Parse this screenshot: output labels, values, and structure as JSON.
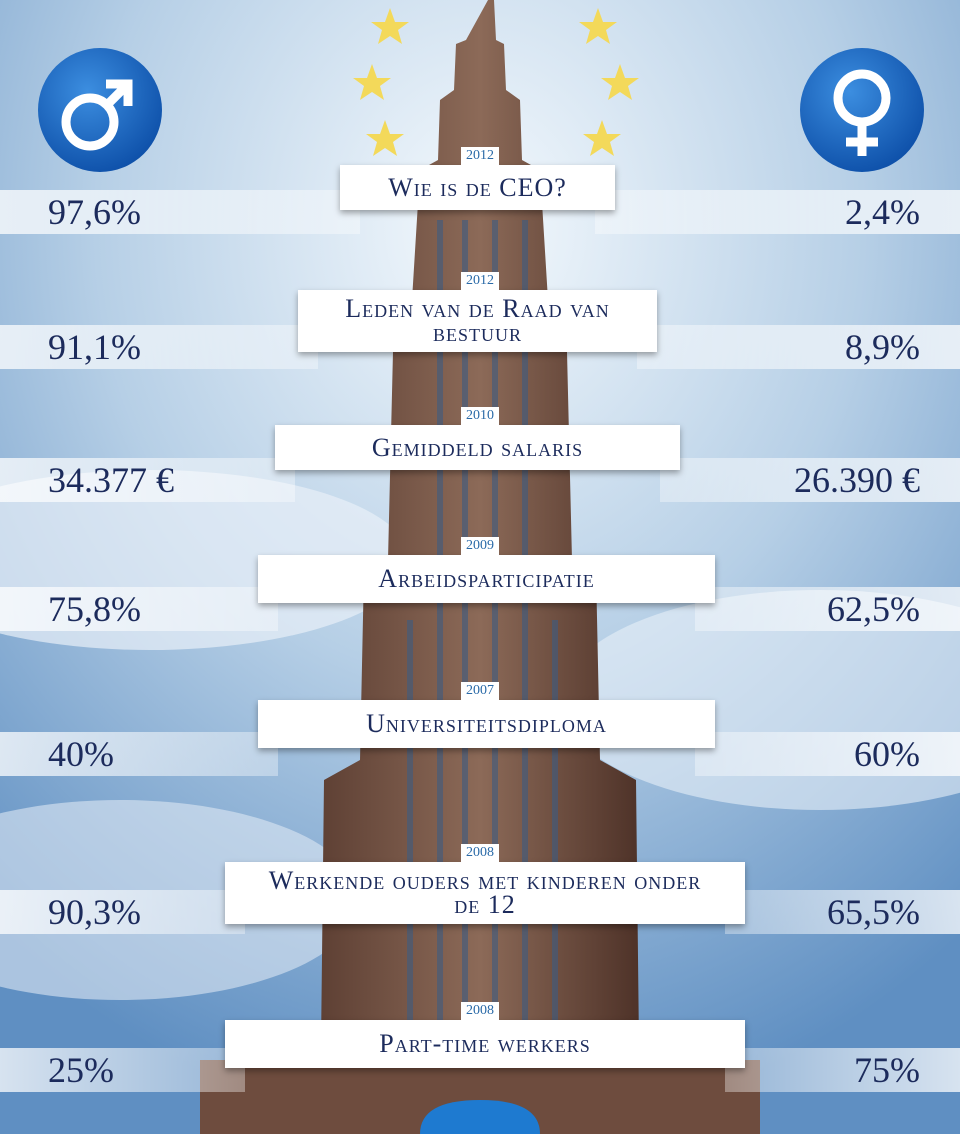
{
  "rows": [
    {
      "year": "2012",
      "title": "Wie is de CEO?",
      "male": "97,6%",
      "female": "2,4%"
    },
    {
      "year": "2012",
      "title": "Leden van de Raad van bestuur",
      "male": "91,1%",
      "female": "8,9%"
    },
    {
      "year": "2010",
      "title": "Gemiddeld salaris",
      "male": "34.377 €",
      "female": "26.390 €"
    },
    {
      "year": "2009",
      "title": "Arbeidsparticipatie",
      "male": "75,8%",
      "female": "62,5%"
    },
    {
      "year": "2007",
      "title": "Universiteitsdiploma",
      "male": "40%",
      "female": "60%"
    },
    {
      "year": "2008",
      "title": "Werkende ouders met kinderen onder de 12",
      "male": "90,3%",
      "female": "65,5%"
    },
    {
      "year": "2008",
      "title": "Part-time werkers",
      "male": "25%",
      "female": "75%"
    }
  ]
}
